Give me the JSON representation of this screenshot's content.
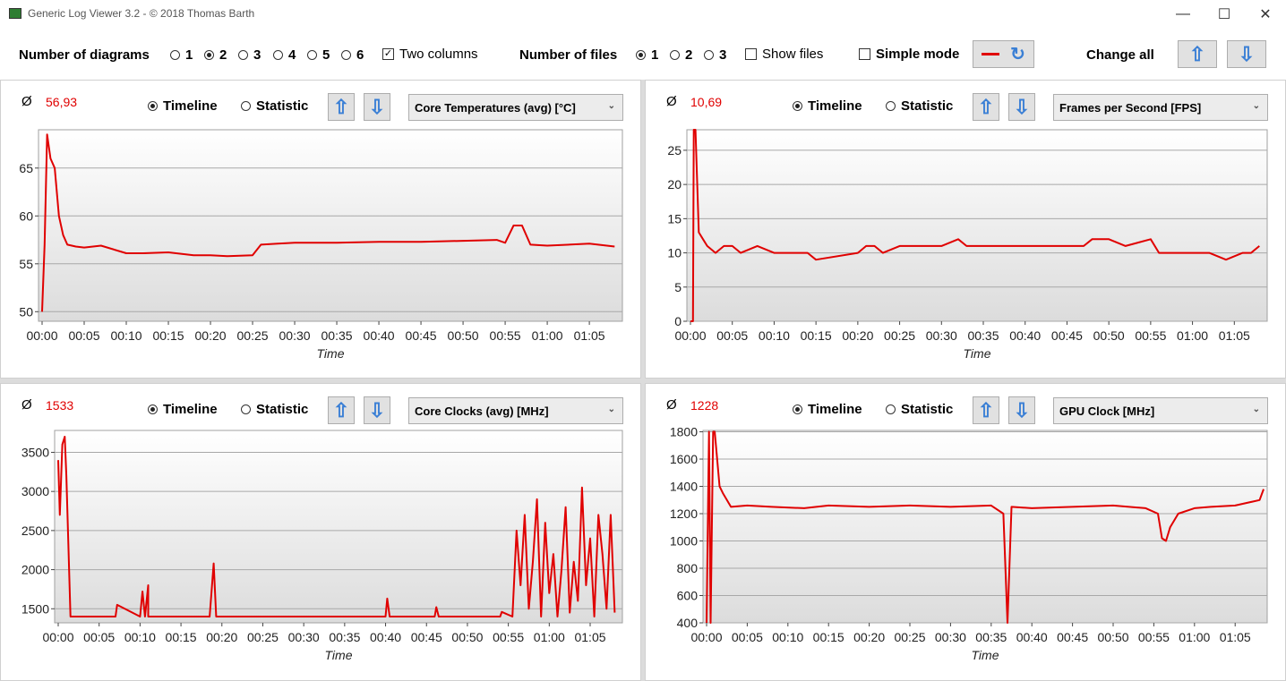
{
  "window": {
    "title": "Generic Log Viewer 3.2 - © 2018 Thomas Barth"
  },
  "toolbar": {
    "num_diagrams_label": "Number of diagrams",
    "diagram_options": [
      "1",
      "2",
      "3",
      "4",
      "5",
      "6"
    ],
    "diagram_selected": "2",
    "two_columns_label": "Two columns",
    "two_columns_checked": true,
    "num_files_label": "Number of files",
    "file_options": [
      "1",
      "2",
      "3"
    ],
    "file_selected": "1",
    "show_files_label": "Show files",
    "simple_mode_label": "Simple mode",
    "change_all_label": "Change all"
  },
  "panels": [
    {
      "avg_symbol": "Ø",
      "avg": "56,93",
      "timeline_label": "Timeline",
      "statistic_label": "Statistic",
      "mode": "timeline",
      "metric": "Core Temperatures (avg) [°C]"
    },
    {
      "avg_symbol": "Ø",
      "avg": "10,69",
      "timeline_label": "Timeline",
      "statistic_label": "Statistic",
      "mode": "timeline",
      "metric": "Frames per Second [FPS]"
    },
    {
      "avg_symbol": "Ø",
      "avg": "1533",
      "timeline_label": "Timeline",
      "statistic_label": "Statistic",
      "mode": "timeline",
      "metric": "Core Clocks (avg) [MHz]"
    },
    {
      "avg_symbol": "Ø",
      "avg": "1228",
      "timeline_label": "Timeline",
      "statistic_label": "Statistic",
      "mode": "timeline",
      "metric": "GPU Clock [MHz]"
    }
  ],
  "colors": {
    "series": "#e00000",
    "accent": "#3a7fd5"
  },
  "chart_data": [
    {
      "type": "line",
      "xlabel": "Time",
      "x_ticks": [
        "00:00",
        "00:05",
        "00:10",
        "00:15",
        "00:20",
        "00:25",
        "00:30",
        "00:35",
        "00:40",
        "00:45",
        "00:50",
        "00:55",
        "01:00",
        "01:05"
      ],
      "y_ticks": [
        50,
        55,
        60,
        65
      ],
      "ylim": [
        49,
        69
      ],
      "xlim": [
        0,
        68.5
      ],
      "series": [
        {
          "x": [
            0,
            0.3,
            0.6,
            1,
            1.5,
            2,
            2.5,
            3,
            4,
            5,
            7,
            10,
            12,
            15,
            18,
            20,
            22,
            25,
            26,
            28,
            30,
            35,
            40,
            45,
            50,
            54,
            55,
            56,
            57,
            58,
            60,
            65,
            68
          ],
          "y": [
            50,
            57,
            68.5,
            66,
            65,
            60,
            58,
            57,
            56.8,
            56.7,
            56.9,
            56.1,
            56.1,
            56.2,
            55.9,
            55.9,
            55.8,
            55.9,
            57,
            57.1,
            57.2,
            57.2,
            57.3,
            57.3,
            57.4,
            57.5,
            57.2,
            59,
            59,
            57,
            56.9,
            57.1,
            56.8
          ]
        }
      ]
    },
    {
      "type": "line",
      "xlabel": "Time",
      "x_ticks": [
        "00:00",
        "00:05",
        "00:10",
        "00:15",
        "00:20",
        "00:25",
        "00:30",
        "00:35",
        "00:40",
        "00:45",
        "00:50",
        "00:55",
        "01:00",
        "01:05"
      ],
      "y_ticks": [
        0,
        5,
        10,
        15,
        20,
        25
      ],
      "ylim": [
        0,
        28
      ],
      "xlim": [
        0,
        68.5
      ],
      "series": [
        {
          "x": [
            0,
            0.3,
            0.4,
            0.6,
            1,
            1.5,
            2,
            3,
            4,
            5,
            6,
            8,
            10,
            11,
            13,
            14,
            15,
            20,
            21,
            22,
            23,
            25,
            30,
            32,
            33,
            40,
            47,
            48,
            50,
            52,
            55,
            56,
            57,
            60,
            62,
            64,
            66,
            67,
            68
          ],
          "y": [
            0,
            0,
            28,
            28,
            13,
            12,
            11,
            10,
            11,
            11,
            10,
            11,
            10,
            10,
            10,
            10,
            9,
            10,
            11,
            11,
            10,
            11,
            11,
            12,
            11,
            11,
            11,
            12,
            12,
            11,
            12,
            10,
            10,
            10,
            10,
            9,
            10,
            10,
            11
          ]
        }
      ]
    },
    {
      "type": "line",
      "xlabel": "Time",
      "x_ticks": [
        "00:00",
        "00:05",
        "00:10",
        "00:15",
        "00:20",
        "00:25",
        "00:30",
        "00:35",
        "00:40",
        "00:45",
        "00:50",
        "00:55",
        "01:00",
        "01:05"
      ],
      "y_ticks": [
        1500,
        2000,
        2500,
        3000,
        3500
      ],
      "ylim": [
        1320,
        3780
      ],
      "xlim": [
        0,
        68.5
      ],
      "series": [
        {
          "x": [
            0,
            0.2,
            0.5,
            0.8,
            1,
            1.5,
            3,
            7,
            7.2,
            10,
            10.3,
            10.6,
            11,
            11,
            18.5,
            19,
            19.3,
            20,
            40,
            40.2,
            40.5,
            46,
            46.2,
            46.5,
            54,
            54.2,
            55.5,
            56,
            56.5,
            57,
            57.5,
            58,
            58.5,
            59,
            59.5,
            60,
            60.5,
            61,
            61.5,
            62,
            62.5,
            63,
            63.5,
            64,
            64.5,
            65,
            65.5,
            66,
            66.5,
            67,
            67.5,
            68
          ],
          "y": [
            3400,
            2700,
            3600,
            3700,
            3200,
            1400,
            1400,
            1400,
            1550,
            1400,
            1720,
            1400,
            1800,
            1400,
            1400,
            2080,
            1400,
            1400,
            1400,
            1630,
            1400,
            1400,
            1520,
            1400,
            1400,
            1460,
            1400,
            2500,
            1800,
            2700,
            1500,
            2100,
            2900,
            1400,
            2600,
            1700,
            2200,
            1400,
            2000,
            2800,
            1450,
            2100,
            1600,
            3050,
            1800,
            2400,
            1400,
            2700,
            2200,
            1500,
            2700,
            1450
          ]
        }
      ]
    },
    {
      "type": "line",
      "xlabel": "Time",
      "x_ticks": [
        "00:00",
        "00:05",
        "00:10",
        "00:15",
        "00:20",
        "00:25",
        "00:30",
        "00:35",
        "00:40",
        "00:45",
        "00:50",
        "00:55",
        "01:00",
        "01:05"
      ],
      "y_ticks": [
        400,
        600,
        800,
        1000,
        1200,
        1400,
        1600,
        1800
      ],
      "ylim": [
        400,
        1810
      ],
      "xlim": [
        0,
        68.5
      ],
      "series": [
        {
          "x": [
            0,
            0.3,
            0.5,
            0.8,
            1,
            1.3,
            1.6,
            2,
            3,
            5,
            8,
            12,
            15,
            20,
            25,
            30,
            35,
            36.5,
            37,
            37.5,
            40,
            45,
            50,
            54,
            55.5,
            56,
            56.5,
            57,
            58,
            60,
            62,
            65,
            68,
            68.5
          ],
          "y": [
            400,
            1800,
            400,
            1800,
            1800,
            1600,
            1400,
            1350,
            1250,
            1260,
            1250,
            1240,
            1260,
            1250,
            1260,
            1250,
            1260,
            1200,
            400,
            1250,
            1240,
            1250,
            1260,
            1240,
            1200,
            1020,
            1000,
            1100,
            1200,
            1240,
            1250,
            1260,
            1300,
            1380
          ]
        }
      ]
    }
  ]
}
